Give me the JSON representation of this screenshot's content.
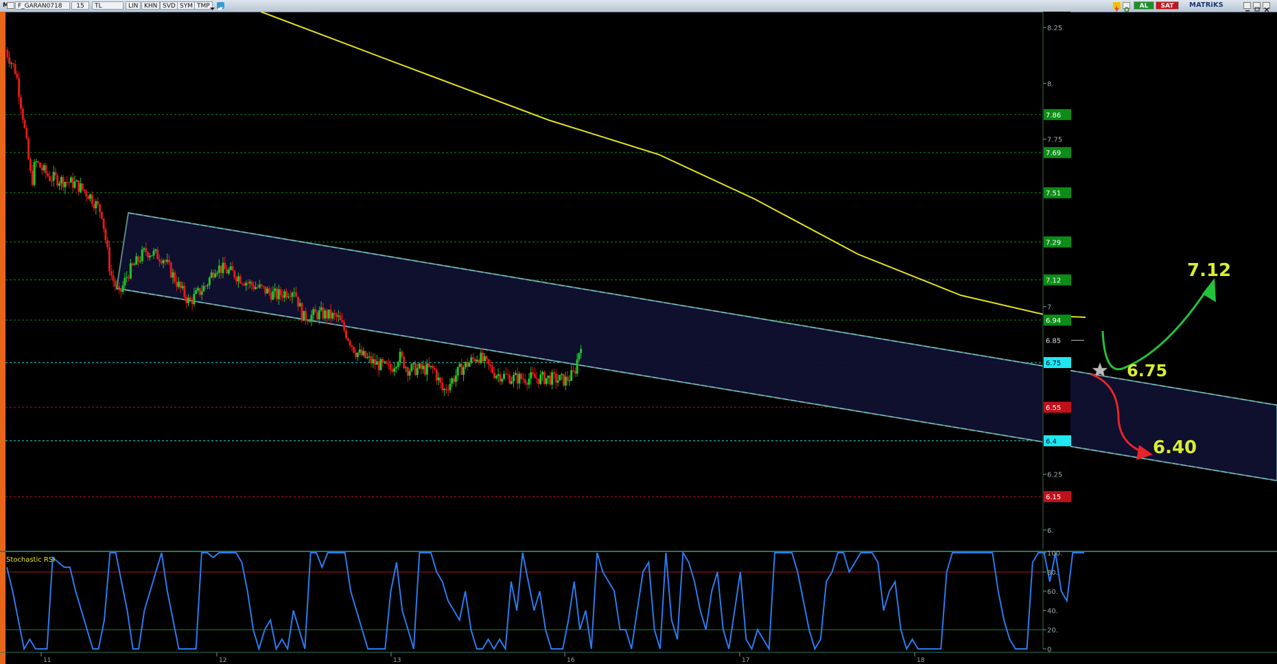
{
  "toolbar": {
    "app_icon": "M",
    "symbol": "F_GARAN0718",
    "period": "15",
    "currency": "TL",
    "buttons": [
      "LIN",
      "KHN",
      "SVD",
      "SYM",
      "TMP"
    ],
    "buy_label": "AL",
    "sell_label": "SAT",
    "brand": "MATRiKS",
    "icons": [
      "dropdown-arrow-icon",
      "twitter-bird-icon",
      "lightning-icon",
      "refresh-icon",
      "minimize-icon",
      "restore-icon",
      "close-icon"
    ]
  },
  "colors": {
    "background": "#000000",
    "candle_up": "#1ec82a",
    "candle_down": "#e11a1a",
    "moving_average": "#e6e21a",
    "channel_fill": "#101030",
    "channel_border": "#5a8a8a",
    "green_level": "#0c8d17",
    "red_level": "#c0101a",
    "cyan_level": "#1ee8f0",
    "stoch_rsi": "#2b7cf0",
    "annotation_yellow": "#d8ee2e",
    "arrow_up": "#22c23a",
    "arrow_down": "#e8242a"
  },
  "chart_data": [
    {
      "type": "candlestick",
      "x_labels": [
        "11",
        "12",
        "13",
        "16",
        "17",
        "18"
      ],
      "ylim": [
        5.95,
        8.28
      ],
      "y_ticks": [
        "8.25",
        "8.",
        "7.75",
        "7.",
        "6.25",
        "6."
      ],
      "grid": false,
      "level_lines": [
        {
          "value": 7.86,
          "label": "7.86",
          "color": "green"
        },
        {
          "value": 7.69,
          "label": "7.69",
          "color": "green"
        },
        {
          "value": 7.51,
          "label": "7.51",
          "color": "green"
        },
        {
          "value": 7.29,
          "label": "7.29",
          "color": "green"
        },
        {
          "value": 7.12,
          "label": "7.12",
          "color": "green"
        },
        {
          "value": 6.94,
          "label": "6.94",
          "color": "green"
        },
        {
          "value": 6.85,
          "label": "6.85",
          "color": "white"
        },
        {
          "value": 6.75,
          "label": "6.75",
          "color": "cyan"
        },
        {
          "value": 6.55,
          "label": "6.55",
          "color": "red"
        },
        {
          "value": 6.4,
          "label": "6.4",
          "color": "cyan"
        },
        {
          "value": 6.15,
          "label": "6.15",
          "color": "red"
        }
      ],
      "moving_average": [
        {
          "t": 0.2,
          "v": 8.33
        },
        {
          "t": 0.9,
          "v": 8.08
        },
        {
          "t": 1.6,
          "v": 7.73
        },
        {
          "t": 2.3,
          "v": 7.38
        },
        {
          "t": 2.8,
          "v": 7.16
        },
        {
          "t": 3.25,
          "v": 7.0
        }
      ],
      "channel": {
        "upper": [
          {
            "t": 0.38,
            "v": 7.43
          },
          {
            "t": 3.8,
            "v": 6.72
          }
        ],
        "lower": [
          {
            "t": 0.35,
            "v": 7.1
          },
          {
            "t": 3.8,
            "v": 6.25
          }
        ]
      },
      "annotations": [
        {
          "label": "7.12",
          "direction": "up"
        },
        {
          "label": "6.75",
          "direction": "pullback"
        },
        {
          "label": "6.40",
          "direction": "down"
        }
      ],
      "price_path": [
        {
          "t": 0.0,
          "v": 8.15
        },
        {
          "t": 0.06,
          "v": 8.05
        },
        {
          "t": 0.1,
          "v": 7.85
        },
        {
          "t": 0.15,
          "v": 7.55
        },
        {
          "t": 0.17,
          "v": 7.65
        },
        {
          "t": 0.25,
          "v": 7.58
        },
        {
          "t": 0.4,
          "v": 7.55
        },
        {
          "t": 0.48,
          "v": 7.5
        },
        {
          "t": 0.55,
          "v": 7.42
        },
        {
          "t": 0.6,
          "v": 7.15
        },
        {
          "t": 0.65,
          "v": 7.05
        },
        {
          "t": 0.7,
          "v": 7.15
        },
        {
          "t": 0.8,
          "v": 7.25
        },
        {
          "t": 0.9,
          "v": 7.22
        },
        {
          "t": 1.0,
          "v": 7.08
        },
        {
          "t": 1.05,
          "v": 7.02
        },
        {
          "t": 1.15,
          "v": 7.1
        },
        {
          "t": 1.2,
          "v": 7.18
        },
        {
          "t": 1.3,
          "v": 7.15
        },
        {
          "t": 1.4,
          "v": 7.1
        },
        {
          "t": 1.55,
          "v": 7.05
        },
        {
          "t": 1.65,
          "v": 7.08
        },
        {
          "t": 1.7,
          "v": 6.95
        },
        {
          "t": 1.8,
          "v": 6.97
        },
        {
          "t": 1.9,
          "v": 6.95
        },
        {
          "t": 2.0,
          "v": 6.8
        },
        {
          "t": 2.1,
          "v": 6.75
        },
        {
          "t": 2.2,
          "v": 6.72
        },
        {
          "t": 2.25,
          "v": 6.78
        },
        {
          "t": 2.3,
          "v": 6.72
        },
        {
          "t": 2.45,
          "v": 6.72
        },
        {
          "t": 2.5,
          "v": 6.62
        },
        {
          "t": 2.6,
          "v": 6.72
        },
        {
          "t": 2.7,
          "v": 6.78
        },
        {
          "t": 2.8,
          "v": 6.7
        },
        {
          "t": 2.9,
          "v": 6.68
        },
        {
          "t": 3.0,
          "v": 6.68
        },
        {
          "t": 3.1,
          "v": 6.68
        },
        {
          "t": 3.2,
          "v": 6.67
        },
        {
          "t": 3.25,
          "v": 6.7
        },
        {
          "t": 3.3,
          "v": 6.88
        }
      ]
    },
    {
      "type": "line",
      "name": "Stochastic RSI",
      "ylim": [
        0,
        100
      ],
      "y_ticks": [
        "100.",
        "80.",
        "60.",
        "40.",
        "20.",
        "0"
      ],
      "overbought": 80,
      "oversold": 20,
      "values": [
        85,
        60,
        30,
        0,
        10,
        0,
        0,
        0,
        95,
        90,
        85,
        85,
        60,
        40,
        20,
        0,
        0,
        30,
        100,
        100,
        70,
        40,
        0,
        0,
        40,
        60,
        80,
        100,
        60,
        30,
        0,
        0,
        0,
        0,
        100,
        100,
        95,
        100,
        100,
        100,
        100,
        90,
        60,
        20,
        0,
        20,
        30,
        0,
        10,
        0,
        40,
        20,
        0,
        100,
        100,
        85,
        100,
        100,
        100,
        100,
        60,
        40,
        20,
        0,
        0,
        0,
        0,
        60,
        90,
        40,
        20,
        0,
        100,
        100,
        100,
        80,
        70,
        50,
        40,
        30,
        60,
        20,
        0,
        0,
        10,
        0,
        10,
        0,
        70,
        40,
        100,
        70,
        40,
        60,
        20,
        0,
        0,
        0,
        30,
        70,
        20,
        40,
        0,
        100,
        80,
        70,
        60,
        20,
        20,
        0,
        40,
        80,
        90,
        20,
        0,
        100,
        30,
        10,
        100,
        90,
        70,
        40,
        20,
        60,
        80,
        20,
        0,
        40,
        80,
        10,
        0,
        20,
        10,
        0,
        100,
        100,
        100,
        100,
        80,
        50,
        20,
        0,
        10,
        70,
        80,
        100,
        100,
        80,
        90,
        100,
        100,
        100,
        90,
        40,
        60,
        70,
        20,
        0,
        10,
        0,
        0,
        0,
        0,
        0,
        80,
        100,
        100,
        100,
        100,
        100,
        100,
        100,
        100,
        60,
        30,
        10,
        0,
        0,
        0,
        90,
        100,
        100,
        70,
        100,
        60,
        50,
        100,
        100,
        100
      ]
    }
  ]
}
